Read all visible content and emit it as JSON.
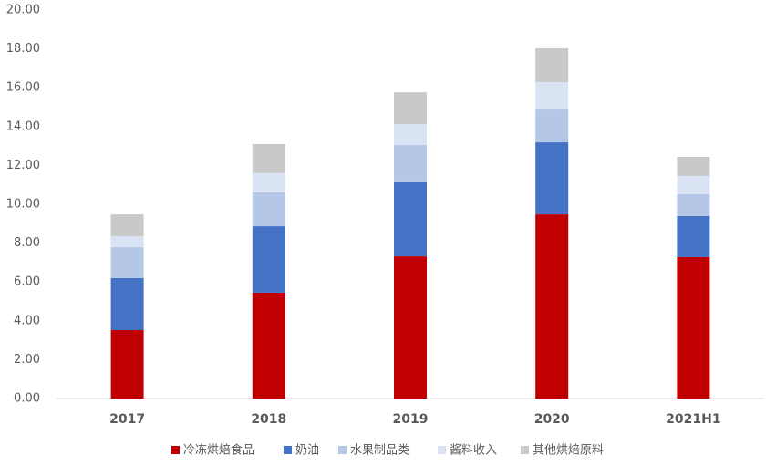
{
  "chart_data": {
    "type": "stacked_bar",
    "categories": [
      "2017",
      "2018",
      "2019",
      "2020",
      "2021H1"
    ],
    "series": [
      {
        "name": "冷冻烘焙食品",
        "color": "#c00000",
        "values": [
          3.52,
          5.45,
          7.32,
          9.48,
          7.28
        ]
      },
      {
        "name": "奶油",
        "color": "#4472c4",
        "values": [
          2.68,
          3.42,
          3.81,
          3.71,
          2.11
        ]
      },
      {
        "name": "水果制品类",
        "color": "#b4c7e7",
        "values": [
          1.59,
          1.74,
          1.92,
          1.69,
          1.13
        ]
      },
      {
        "name": "酱料收入",
        "color": "#dae3f3",
        "values": [
          0.57,
          0.99,
          1.08,
          1.41,
          0.94
        ]
      },
      {
        "name": "其他烘焙原料",
        "color": "#c9c9c9",
        "values": [
          1.12,
          1.5,
          1.64,
          1.74,
          0.98
        ]
      }
    ],
    "ylim": [
      0,
      20
    ],
    "yticks": [
      {
        "value": 0,
        "label": "0.00"
      },
      {
        "value": 2,
        "label": "2.00"
      },
      {
        "value": 4,
        "label": "4.00"
      },
      {
        "value": 6,
        "label": "6.00"
      },
      {
        "value": 8,
        "label": "8.00"
      },
      {
        "value": 10,
        "label": "10.00"
      },
      {
        "value": 12,
        "label": "12.00"
      },
      {
        "value": 14,
        "label": "14.00"
      },
      {
        "value": 16,
        "label": "16.00"
      },
      {
        "value": 18,
        "label": "18.00"
      },
      {
        "value": 20,
        "label": "20.00"
      }
    ],
    "grid": false,
    "legend": "bottom"
  }
}
